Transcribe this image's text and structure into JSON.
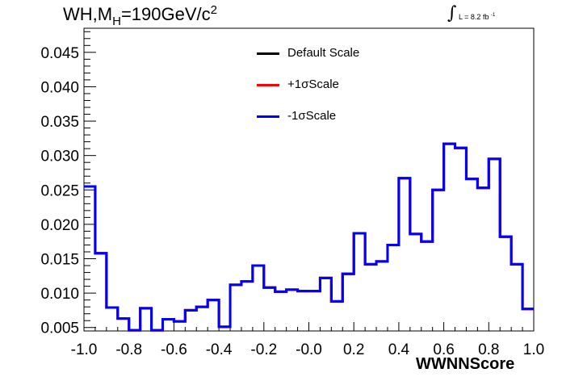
{
  "title": {
    "main": "WH,M",
    "sub": "H",
    "eq": "=190GeV/c",
    "sup": "2"
  },
  "lumi": {
    "int": "∫",
    "text": "L = 8.2 fb",
    "sup": "-1"
  },
  "legend": [
    {
      "label": "Default Scale",
      "color": "#000000"
    },
    {
      "label": "+1σScale",
      "color": "#ff0000"
    },
    {
      "label": "-1σScale",
      "color": "#0000ff"
    }
  ],
  "chart_data": {
    "type": "step",
    "xlabel": "WWNNScore",
    "ylabel": "",
    "xlim": [
      -1.0,
      1.0
    ],
    "ylim": [
      0.0045,
      0.0485
    ],
    "x_ticks": [
      "-1.0",
      "-0.8",
      "-0.6",
      "-0.4",
      "-0.2",
      "-0.0",
      "0.2",
      "0.4",
      "0.6",
      "0.8",
      "1.0"
    ],
    "y_ticks": [
      "0.005",
      "0.010",
      "0.015",
      "0.020",
      "0.025",
      "0.030",
      "0.035",
      "0.040",
      "0.045"
    ],
    "bin_edges": [
      -1.0,
      -0.95,
      -0.9,
      -0.85,
      -0.8,
      -0.75,
      -0.7,
      -0.65,
      -0.6,
      -0.55,
      -0.5,
      -0.45,
      -0.4,
      -0.35,
      -0.3,
      -0.25,
      -0.2,
      -0.15,
      -0.1,
      -0.05,
      0.0,
      0.05,
      0.1,
      0.15,
      0.2,
      0.25,
      0.3,
      0.35,
      0.4,
      0.45,
      0.5,
      0.55,
      0.6,
      0.65,
      0.7,
      0.75,
      0.8,
      0.85,
      0.9,
      0.95,
      1.0
    ],
    "series": [
      {
        "name": "Default Scale",
        "color": "#000000",
        "values": [
          0.0255,
          0.0158,
          0.0079,
          0.0063,
          0.0046,
          0.0078,
          0.0046,
          0.0062,
          0.0059,
          0.0075,
          0.008,
          0.009,
          0.0051,
          0.0112,
          0.0117,
          0.014,
          0.0108,
          0.0102,
          0.0105,
          0.0103,
          0.0103,
          0.0122,
          0.0088,
          0.0128,
          0.0187,
          0.0142,
          0.0146,
          0.017,
          0.0267,
          0.0186,
          0.0175,
          0.025,
          0.0317,
          0.0311,
          0.0266,
          0.0253,
          0.0295,
          0.0182,
          0.0142,
          0.0077
        ]
      },
      {
        "name": "+1σScale",
        "color": "#ff0000",
        "values": [
          0.0255,
          0.0158,
          0.0079,
          0.0063,
          0.0046,
          0.0078,
          0.0046,
          0.0062,
          0.0059,
          0.0075,
          0.008,
          0.009,
          0.0051,
          0.0112,
          0.0117,
          0.014,
          0.0108,
          0.0102,
          0.0105,
          0.0103,
          0.0103,
          0.0122,
          0.0088,
          0.0128,
          0.0187,
          0.0142,
          0.0146,
          0.017,
          0.0267,
          0.0186,
          0.0175,
          0.025,
          0.0317,
          0.0311,
          0.0266,
          0.0253,
          0.0295,
          0.0182,
          0.0142,
          0.0077
        ]
      },
      {
        "name": "-1σScale",
        "color": "#0000ff",
        "values": [
          0.0255,
          0.0158,
          0.0079,
          0.0063,
          0.0046,
          0.0078,
          0.0046,
          0.0062,
          0.0059,
          0.0075,
          0.008,
          0.009,
          0.0051,
          0.0112,
          0.0117,
          0.014,
          0.0108,
          0.0102,
          0.0105,
          0.0103,
          0.0103,
          0.0122,
          0.0088,
          0.0128,
          0.0187,
          0.0142,
          0.0146,
          0.017,
          0.0267,
          0.0186,
          0.0175,
          0.025,
          0.0317,
          0.0311,
          0.0266,
          0.0253,
          0.0295,
          0.0182,
          0.0142,
          0.0077
        ]
      }
    ]
  }
}
